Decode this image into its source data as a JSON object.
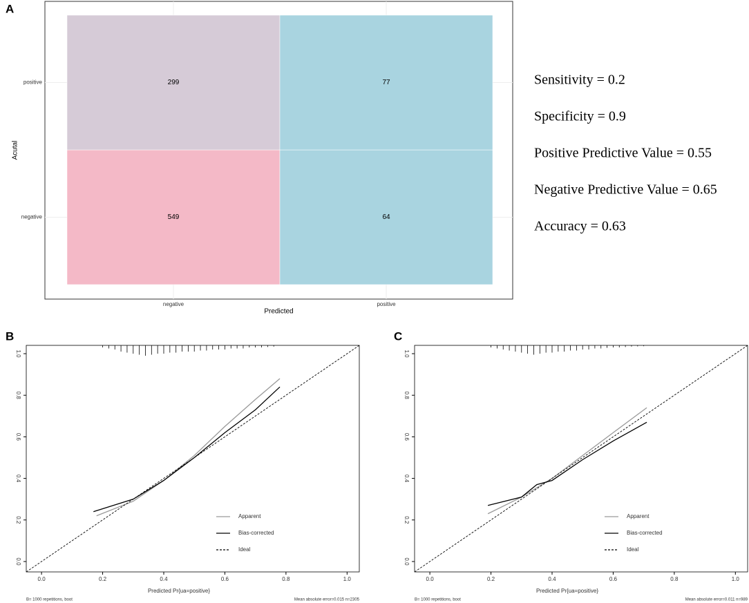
{
  "chart_data": [
    {
      "type": "heatmap",
      "panel": "A",
      "x_categories": [
        "negative",
        "positive"
      ],
      "y_categories": [
        "negative",
        "positive"
      ],
      "values": [
        [
          549,
          64
        ],
        [
          299,
          77
        ]
      ],
      "colors": [
        [
          "#f4b9c7",
          "#a9d4e0"
        ],
        [
          "#d6cbd7",
          "#a9d4e0"
        ]
      ],
      "xlabel": "Predicted",
      "ylabel": "Acutal",
      "annotations": [
        "Sensitivity = 0.2",
        "Specificity = 0.9",
        "Positive Predictive Value = 0.55",
        "Negative Predictive Value = 0.65",
        "Accuracy = 0.63"
      ]
    },
    {
      "type": "line",
      "panel": "B",
      "xlabel": "Predicted Pr{ua=positive}",
      "footnote_left": "B= 1000 repetitions, boot",
      "footnote_right": "Mean absolute error=0.015 n=2305",
      "xlim": [
        -0.05,
        1.04
      ],
      "ylim": [
        -0.05,
        1.04
      ],
      "xticks": [
        {
          "value": 0,
          "label": "0.0"
        },
        0.2,
        0.4,
        0.6,
        0.8,
        {
          "value": 1,
          "label": "1.0"
        }
      ],
      "yticks": [
        {
          "value": 0,
          "label": "0.0"
        },
        0.2,
        0.4,
        0.6,
        0.8,
        {
          "value": 1,
          "label": "1.0"
        }
      ],
      "series": [
        {
          "name": "Apparent",
          "color": "#999999",
          "dash": false,
          "x": [
            0.18,
            0.3,
            0.4,
            0.5,
            0.6,
            0.7,
            0.78
          ],
          "values": [
            0.22,
            0.29,
            0.39,
            0.51,
            0.65,
            0.78,
            0.88
          ]
        },
        {
          "name": "Bias-corrected",
          "color": "#000000",
          "dash": false,
          "x": [
            0.17,
            0.3,
            0.4,
            0.5,
            0.6,
            0.7,
            0.78
          ],
          "values": [
            0.24,
            0.3,
            0.39,
            0.5,
            0.62,
            0.73,
            0.84
          ]
        },
        {
          "name": "Ideal",
          "color": "#000000",
          "dash": true,
          "x": [
            -0.05,
            1.04
          ],
          "values": [
            -0.05,
            1.04
          ]
        }
      ],
      "rug": {
        "x": [
          0.2,
          0.22,
          0.24,
          0.26,
          0.28,
          0.3,
          0.32,
          0.34,
          0.36,
          0.38,
          0.4,
          0.42,
          0.44,
          0.46,
          0.48,
          0.5,
          0.52,
          0.54,
          0.56,
          0.58,
          0.6,
          0.62,
          0.64,
          0.66,
          0.68,
          0.7,
          0.72,
          0.74,
          0.76
        ],
        "values": [
          0.01,
          0.015,
          0.02,
          0.03,
          0.035,
          0.04,
          0.045,
          0.05,
          0.045,
          0.04,
          0.04,
          0.035,
          0.035,
          0.03,
          0.03,
          0.03,
          0.025,
          0.025,
          0.02,
          0.02,
          0.02,
          0.015,
          0.015,
          0.015,
          0.01,
          0.01,
          0.01,
          0.008,
          0.006
        ]
      }
    },
    {
      "type": "line",
      "panel": "C",
      "xlabel": "Predicted Pr{ua=positive}",
      "footnote_left": "B= 1000 repetitions, boot",
      "footnote_right": "Mean absolute error=0.011 n=989",
      "xlim": [
        -0.05,
        1.04
      ],
      "ylim": [
        -0.05,
        1.04
      ],
      "xticks": [
        {
          "value": 0,
          "label": "0.0"
        },
        0.2,
        0.4,
        0.6,
        0.8,
        {
          "value": 1,
          "label": "1.0"
        }
      ],
      "yticks": [
        {
          "value": 0,
          "label": "0.0"
        },
        0.2,
        0.4,
        0.6,
        0.8,
        {
          "value": 1,
          "label": "1.0"
        }
      ],
      "series": [
        {
          "name": "Apparent",
          "color": "#999999",
          "dash": false,
          "x": [
            0.19,
            0.3,
            0.4,
            0.5,
            0.6,
            0.71
          ],
          "values": [
            0.23,
            0.31,
            0.4,
            0.51,
            0.62,
            0.74
          ]
        },
        {
          "name": "Bias-corrected",
          "color": "#000000",
          "dash": false,
          "x": [
            0.19,
            0.3,
            0.35,
            0.4,
            0.45,
            0.5,
            0.6,
            0.71
          ],
          "values": [
            0.27,
            0.31,
            0.37,
            0.39,
            0.44,
            0.49,
            0.58,
            0.67
          ]
        },
        {
          "name": "Ideal",
          "color": "#000000",
          "dash": true,
          "x": [
            -0.05,
            1.04
          ],
          "values": [
            -0.05,
            1.04
          ]
        }
      ],
      "rug": {
        "x": [
          0.2,
          0.22,
          0.24,
          0.26,
          0.28,
          0.3,
          0.32,
          0.34,
          0.36,
          0.38,
          0.4,
          0.42,
          0.44,
          0.46,
          0.48,
          0.5,
          0.52,
          0.54,
          0.56,
          0.58,
          0.6,
          0.62,
          0.64,
          0.66,
          0.68,
          0.7
        ],
        "values": [
          0.01,
          0.015,
          0.02,
          0.025,
          0.03,
          0.035,
          0.04,
          0.045,
          0.04,
          0.035,
          0.035,
          0.03,
          0.03,
          0.025,
          0.025,
          0.02,
          0.02,
          0.015,
          0.015,
          0.012,
          0.01,
          0.01,
          0.008,
          0.006,
          0.005,
          0.004
        ]
      }
    }
  ]
}
